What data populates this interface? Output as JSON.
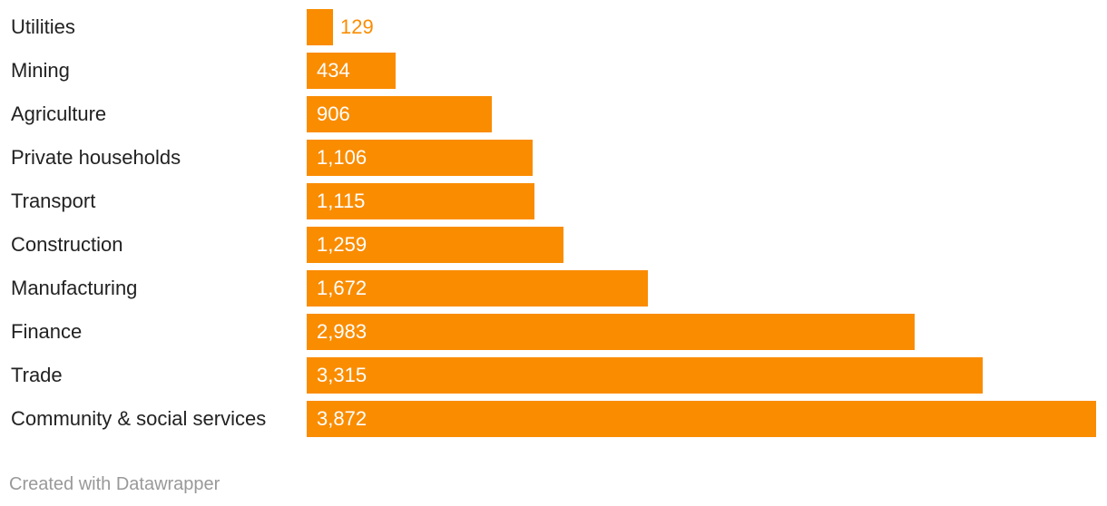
{
  "chart_data": {
    "type": "bar",
    "orientation": "horizontal",
    "categories": [
      "Utilities",
      "Mining",
      "Agriculture",
      "Private households",
      "Transport",
      "Construction",
      "Manufacturing",
      "Finance",
      "Trade",
      "Community & social services"
    ],
    "values": [
      129,
      434,
      906,
      1106,
      1115,
      1259,
      1672,
      2983,
      3315,
      3872
    ],
    "value_labels": [
      "129",
      "434",
      "906",
      "1,106",
      "1,115",
      "1,259",
      "1,672",
      "2,983",
      "3,315",
      "3,872"
    ],
    "title": "",
    "xlabel": "",
    "ylabel": "",
    "xlim": [
      0,
      3872
    ],
    "grid": false,
    "legend": "none"
  },
  "colors": {
    "bar": "#fa8c00",
    "label_outside": "#fa8c00",
    "label_inside": "#ffffff",
    "category_text": "#222222",
    "footer_text": "#999999"
  },
  "footer": {
    "credit": "Created with Datawrapper"
  }
}
